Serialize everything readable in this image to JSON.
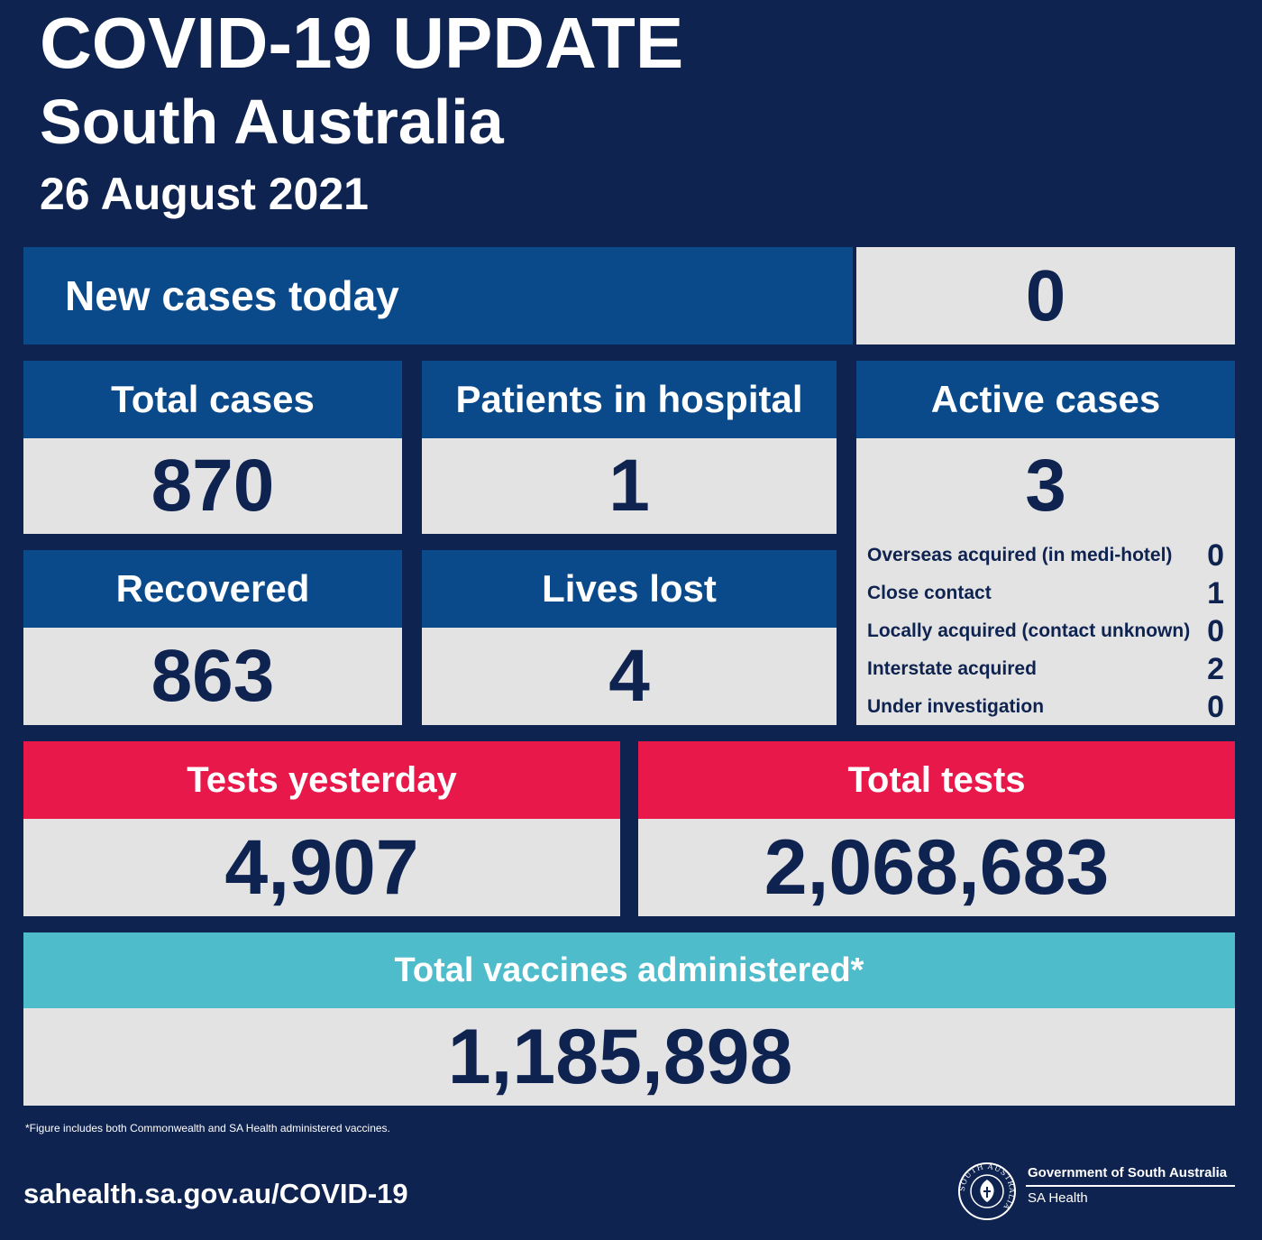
{
  "header": {
    "title": "COVID-19 UPDATE",
    "subtitle": "South Australia",
    "date": "26 August 2021"
  },
  "new_cases": {
    "label": "New cases today",
    "value": "0"
  },
  "total_cases": {
    "label": "Total cases",
    "value": "870"
  },
  "patients_in_hospital": {
    "label": "Patients in hospital",
    "value": "1"
  },
  "active_cases": {
    "label": "Active cases",
    "value": "3",
    "breakdown": [
      {
        "label": "Overseas acquired (in medi-hotel)",
        "value": "0"
      },
      {
        "label": "Close contact",
        "value": "1"
      },
      {
        "label": "Locally acquired (contact unknown)",
        "value": "0"
      },
      {
        "label": "Interstate acquired",
        "value": "2"
      },
      {
        "label": "Under investigation",
        "value": "0"
      }
    ]
  },
  "recovered": {
    "label": "Recovered",
    "value": "863"
  },
  "lives_lost": {
    "label": "Lives lost",
    "value": "4"
  },
  "tests_yesterday": {
    "label": "Tests yesterday",
    "value": "4,907"
  },
  "total_tests": {
    "label": "Total tests",
    "value": "2,068,683"
  },
  "vaccines": {
    "label": "Total vaccines administered*",
    "value": "1,185,898"
  },
  "footnote": "*Figure includes both Commonwealth and SA Health administered vaccines.",
  "footer": {
    "url": "sahealth.sa.gov.au/COVID-19",
    "gov_name": "Government of South Australia",
    "dept": "SA Health",
    "seal_text": "SOUTH AUSTRALIA"
  },
  "colors": {
    "background": "#0f2350",
    "header_blue": "#0a4a8a",
    "value_grey": "#e3e3e3",
    "tests_red": "#e8194a",
    "vaccine_teal": "#4fbccb"
  }
}
